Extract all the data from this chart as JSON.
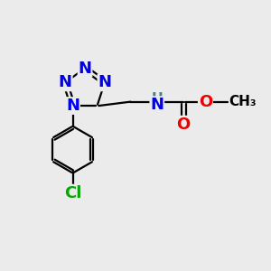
{
  "background_color": "#ebebeb",
  "bond_color": "#000000",
  "bond_lw": 1.6,
  "atom_colors": {
    "N": "#0000ee",
    "O": "#ee0000",
    "Cl": "#00aa00",
    "C": "#000000",
    "H": "#4a8080"
  },
  "fs": 13,
  "fig_w": 3.0,
  "fig_h": 3.0,
  "dpi": 100,
  "xlim": [
    0,
    10
  ],
  "ylim": [
    0,
    10
  ]
}
